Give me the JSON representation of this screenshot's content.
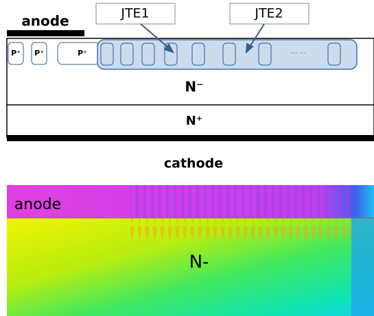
{
  "structure": {
    "anode_label": "anode",
    "callouts": [
      "JTE1",
      "JTE2"
    ],
    "p_regions": [
      "P⁺",
      "P⁺",
      "P⁺"
    ],
    "ellipsis": "··· ···",
    "drift_label": "N⁻",
    "substrate_label": "N⁺",
    "cathode_label": "cathode"
  },
  "simulation": {
    "anode_label": "anode",
    "drift_label": "N-"
  }
}
